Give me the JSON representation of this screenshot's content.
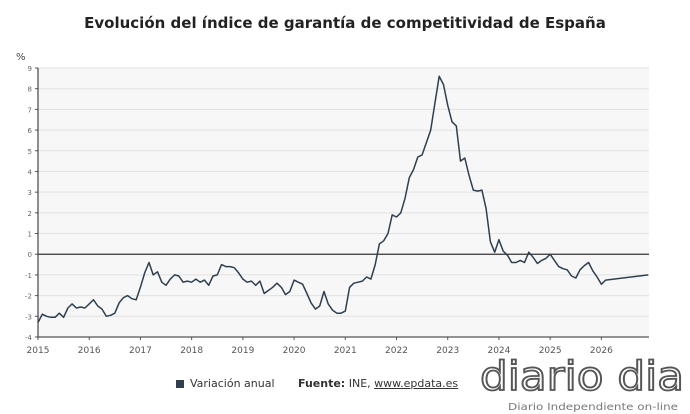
{
  "chart_data": {
    "type": "line",
    "title": "Evolución del índice de garantía de competitividad de España",
    "ylabel": "%",
    "ylim": [
      -4,
      9
    ],
    "yticks": [
      -4,
      -3,
      -2,
      -1,
      0,
      1,
      2,
      3,
      4,
      5,
      6,
      7,
      8,
      9
    ],
    "xticks": [
      "2015",
      "2016",
      "2017",
      "2018",
      "2019",
      "2020",
      "2021",
      "2022",
      "2023",
      "2024",
      "2025",
      "2026"
    ],
    "grid": true,
    "legend_position": "bottom",
    "series": [
      {
        "name": "Variación anual",
        "color": "#2e3f50",
        "points": [
          [
            "2015-01",
            -3.3
          ],
          [
            "2015-02",
            -2.9
          ],
          [
            "2015-03",
            -3.0
          ],
          [
            "2015-04",
            -3.05
          ],
          [
            "2015-05",
            -3.05
          ],
          [
            "2015-06",
            -2.85
          ],
          [
            "2015-07",
            -3.05
          ],
          [
            "2015-08",
            -2.6
          ],
          [
            "2015-09",
            -2.4
          ],
          [
            "2015-10",
            -2.6
          ],
          [
            "2015-11",
            -2.55
          ],
          [
            "2015-12",
            -2.6
          ],
          [
            "2016-01",
            -2.4
          ],
          [
            "2016-02",
            -2.2
          ],
          [
            "2016-03",
            -2.5
          ],
          [
            "2016-04",
            -2.65
          ],
          [
            "2016-05",
            -3.0
          ],
          [
            "2016-06",
            -2.95
          ],
          [
            "2016-07",
            -2.85
          ],
          [
            "2016-08",
            -2.35
          ],
          [
            "2016-09",
            -2.1
          ],
          [
            "2016-10",
            -2.0
          ],
          [
            "2016-11",
            -2.15
          ],
          [
            "2016-12",
            -2.2
          ],
          [
            "2017-01",
            -1.6
          ],
          [
            "2017-02",
            -0.9
          ],
          [
            "2017-03",
            -0.4
          ],
          [
            "2017-04",
            -1.0
          ],
          [
            "2017-05",
            -0.85
          ],
          [
            "2017-06",
            -1.35
          ],
          [
            "2017-07",
            -1.5
          ],
          [
            "2017-08",
            -1.2
          ],
          [
            "2017-09",
            -1.0
          ],
          [
            "2017-10",
            -1.05
          ],
          [
            "2017-11",
            -1.35
          ],
          [
            "2017-12",
            -1.3
          ],
          [
            "2018-01",
            -1.35
          ],
          [
            "2018-02",
            -1.2
          ],
          [
            "2018-03",
            -1.35
          ],
          [
            "2018-04",
            -1.25
          ],
          [
            "2018-05",
            -1.5
          ],
          [
            "2018-06",
            -1.05
          ],
          [
            "2018-07",
            -1.0
          ],
          [
            "2018-08",
            -0.5
          ],
          [
            "2018-09",
            -0.6
          ],
          [
            "2018-10",
            -0.6
          ],
          [
            "2018-11",
            -0.65
          ],
          [
            "2018-12",
            -0.9
          ],
          [
            "2019-01",
            -1.2
          ],
          [
            "2019-02",
            -1.35
          ],
          [
            "2019-03",
            -1.3
          ],
          [
            "2019-04",
            -1.5
          ],
          [
            "2019-05",
            -1.3
          ],
          [
            "2019-06",
            -1.9
          ],
          [
            "2019-07",
            -1.75
          ],
          [
            "2019-08",
            -1.6
          ],
          [
            "2019-09",
            -1.4
          ],
          [
            "2019-10",
            -1.6
          ],
          [
            "2019-11",
            -1.95
          ],
          [
            "2019-12",
            -1.8
          ],
          [
            "2020-01",
            -1.25
          ],
          [
            "2020-02",
            -1.35
          ],
          [
            "2020-03",
            -1.45
          ],
          [
            "2020-04",
            -1.9
          ],
          [
            "2020-05",
            -2.35
          ],
          [
            "2020-06",
            -2.65
          ],
          [
            "2020-07",
            -2.5
          ],
          [
            "2020-08",
            -1.8
          ],
          [
            "2020-09",
            -2.4
          ],
          [
            "2020-10",
            -2.7
          ],
          [
            "2020-11",
            -2.85
          ],
          [
            "2020-12",
            -2.85
          ],
          [
            "2021-01",
            -2.75
          ],
          [
            "2021-02",
            -1.6
          ],
          [
            "2021-03",
            -1.4
          ],
          [
            "2021-04",
            -1.35
          ],
          [
            "2021-05",
            -1.3
          ],
          [
            "2021-06",
            -1.1
          ],
          [
            "2021-07",
            -1.2
          ],
          [
            "2021-08",
            -0.5
          ],
          [
            "2021-09",
            0.5
          ],
          [
            "2021-10",
            0.65
          ],
          [
            "2021-11",
            1.0
          ],
          [
            "2021-12",
            1.9
          ],
          [
            "2022-01",
            1.8
          ],
          [
            "2022-02",
            2.0
          ],
          [
            "2022-03",
            2.7
          ],
          [
            "2022-04",
            3.7
          ],
          [
            "2022-05",
            4.1
          ],
          [
            "2022-06",
            4.7
          ],
          [
            "2022-07",
            4.8
          ],
          [
            "2022-08",
            5.4
          ],
          [
            "2022-09",
            6.0
          ],
          [
            "2022-10",
            7.3
          ],
          [
            "2022-11",
            8.6
          ],
          [
            "2022-12",
            8.2
          ],
          [
            "2023-01",
            7.2
          ],
          [
            "2023-02",
            6.4
          ],
          [
            "2023-03",
            6.2
          ],
          [
            "2023-04",
            4.5
          ],
          [
            "2023-05",
            4.65
          ],
          [
            "2023-06",
            3.8
          ],
          [
            "2023-07",
            3.1
          ],
          [
            "2023-08",
            3.05
          ],
          [
            "2023-09",
            3.1
          ],
          [
            "2023-10",
            2.2
          ],
          [
            "2023-11",
            0.6
          ],
          [
            "2023-12",
            0.1
          ],
          [
            "2024-01",
            0.7
          ],
          [
            "2024-02",
            0.15
          ],
          [
            "2024-03",
            -0.05
          ],
          [
            "2024-04",
            -0.4
          ],
          [
            "2024-05",
            -0.4
          ],
          [
            "2024-06",
            -0.3
          ],
          [
            "2024-07",
            -0.4
          ],
          [
            "2024-08",
            0.1
          ],
          [
            "2024-09",
            -0.15
          ],
          [
            "2024-10",
            -0.45
          ],
          [
            "2024-11",
            -0.3
          ],
          [
            "2024-12",
            -0.2
          ],
          [
            "2025-01",
            0.0
          ],
          [
            "2025-02",
            -0.3
          ],
          [
            "2025-03",
            -0.6
          ],
          [
            "2025-04",
            -0.7
          ],
          [
            "2025-05",
            -0.75
          ],
          [
            "2025-06",
            -1.05
          ],
          [
            "2025-07",
            -1.15
          ],
          [
            "2025-08",
            -0.75
          ],
          [
            "2025-09",
            -0.55
          ],
          [
            "2025-10",
            -0.4
          ],
          [
            "2025-11",
            -0.8
          ],
          [
            "2025-12",
            -1.1
          ],
          [
            "2026-01",
            -1.45
          ],
          [
            "2026-02",
            -1.25
          ],
          [
            "2026-12",
            -1.0
          ]
        ]
      }
    ]
  },
  "legend": {
    "label": "Variación anual"
  },
  "source": {
    "label": "Fuente:",
    "text": " INE, ",
    "link": "www.epdata.es"
  },
  "logo": {
    "name": "diario dia",
    "tagline": "Diario Independiente on-line"
  }
}
